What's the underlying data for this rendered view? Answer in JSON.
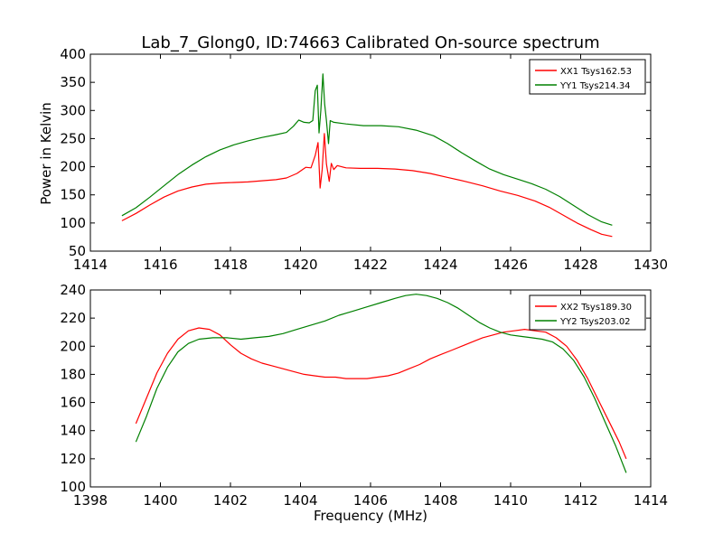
{
  "chart_data": [
    {
      "type": "line",
      "title": "Lab_7_Glong0, ID:74663 Calibrated On-source spectrum",
      "xlabel": "",
      "ylabel": "Power in Kelvin",
      "xlim": [
        1414,
        1430
      ],
      "ylim": [
        50,
        400
      ],
      "x_ticks": [
        1414,
        1416,
        1418,
        1420,
        1422,
        1424,
        1426,
        1428,
        1430
      ],
      "y_ticks": [
        50,
        100,
        150,
        200,
        250,
        300,
        350,
        400
      ],
      "grid": false,
      "legend_position": "top-right",
      "series": [
        {
          "name": "XX1 Tsys162.53",
          "color": "#ff0000",
          "points": [
            [
              1414.9,
              104
            ],
            [
              1415.3,
              117
            ],
            [
              1415.7,
              132
            ],
            [
              1416.1,
              146
            ],
            [
              1416.5,
              157
            ],
            [
              1416.9,
              164
            ],
            [
              1417.3,
              169
            ],
            [
              1417.7,
              171
            ],
            [
              1418.1,
              172
            ],
            [
              1418.5,
              173
            ],
            [
              1418.9,
              175
            ],
            [
              1419.3,
              177
            ],
            [
              1419.6,
              180
            ],
            [
              1419.9,
              188
            ],
            [
              1420.15,
              199
            ],
            [
              1420.3,
              198
            ],
            [
              1420.42,
              220
            ],
            [
              1420.5,
              243
            ],
            [
              1420.56,
              162
            ],
            [
              1420.62,
              195
            ],
            [
              1420.68,
              259
            ],
            [
              1420.74,
              205
            ],
            [
              1420.82,
              174
            ],
            [
              1420.88,
              206
            ],
            [
              1420.95,
              195
            ],
            [
              1421.05,
              202
            ],
            [
              1421.3,
              198
            ],
            [
              1421.7,
              197
            ],
            [
              1422.2,
              197
            ],
            [
              1422.7,
              196
            ],
            [
              1423.2,
              193
            ],
            [
              1423.7,
              188
            ],
            [
              1424.2,
              181
            ],
            [
              1424.7,
              174
            ],
            [
              1425.2,
              166
            ],
            [
              1425.7,
              157
            ],
            [
              1426.2,
              149
            ],
            [
              1426.7,
              139
            ],
            [
              1427.1,
              128
            ],
            [
              1427.5,
              114
            ],
            [
              1427.9,
              100
            ],
            [
              1428.3,
              88
            ],
            [
              1428.6,
              80
            ],
            [
              1428.9,
              76
            ]
          ]
        },
        {
          "name": "YY1 Tsys214.34",
          "color": "#008000",
          "points": [
            [
              1414.9,
              113
            ],
            [
              1415.3,
              127
            ],
            [
              1415.7,
              146
            ],
            [
              1416.1,
              166
            ],
            [
              1416.5,
              186
            ],
            [
              1416.9,
              203
            ],
            [
              1417.3,
              218
            ],
            [
              1417.7,
              230
            ],
            [
              1418.1,
              239
            ],
            [
              1418.5,
              246
            ],
            [
              1418.9,
              252
            ],
            [
              1419.3,
              257
            ],
            [
              1419.6,
              261
            ],
            [
              1419.8,
              272
            ],
            [
              1419.95,
              283
            ],
            [
              1420.1,
              279
            ],
            [
              1420.25,
              278
            ],
            [
              1420.35,
              282
            ],
            [
              1420.42,
              335
            ],
            [
              1420.48,
              345
            ],
            [
              1420.53,
              260
            ],
            [
              1420.58,
              300
            ],
            [
              1420.64,
              365
            ],
            [
              1420.69,
              312
            ],
            [
              1420.74,
              282
            ],
            [
              1420.8,
              241
            ],
            [
              1420.85,
              282
            ],
            [
              1420.95,
              279
            ],
            [
              1421.3,
              276
            ],
            [
              1421.8,
              273
            ],
            [
              1422.3,
              273
            ],
            [
              1422.8,
              271
            ],
            [
              1423.3,
              265
            ],
            [
              1423.8,
              255
            ],
            [
              1424.2,
              241
            ],
            [
              1424.6,
              225
            ],
            [
              1425.0,
              210
            ],
            [
              1425.4,
              196
            ],
            [
              1425.8,
              186
            ],
            [
              1426.2,
              178
            ],
            [
              1426.6,
              170
            ],
            [
              1427.0,
              160
            ],
            [
              1427.4,
              147
            ],
            [
              1427.8,
              131
            ],
            [
              1428.2,
              115
            ],
            [
              1428.6,
              102
            ],
            [
              1428.9,
              96
            ]
          ]
        }
      ]
    },
    {
      "type": "line",
      "title": "",
      "xlabel": "Frequency (MHz)",
      "ylabel": "",
      "xlim": [
        1398,
        1414
      ],
      "ylim": [
        100,
        240
      ],
      "x_ticks": [
        1398,
        1400,
        1402,
        1404,
        1406,
        1408,
        1410,
        1412,
        1414
      ],
      "y_ticks": [
        100,
        120,
        140,
        160,
        180,
        200,
        220,
        240
      ],
      "grid": false,
      "legend_position": "top-right",
      "series": [
        {
          "name": "XX2 Tsys189.30",
          "color": "#ff0000",
          "points": [
            [
              1399.3,
              145
            ],
            [
              1399.6,
              163
            ],
            [
              1399.9,
              181
            ],
            [
              1400.2,
              195
            ],
            [
              1400.5,
              205
            ],
            [
              1400.8,
              211
            ],
            [
              1401.1,
              213
            ],
            [
              1401.4,
              212
            ],
            [
              1401.7,
              208
            ],
            [
              1402.0,
              201
            ],
            [
              1402.3,
              195
            ],
            [
              1402.6,
              191
            ],
            [
              1402.9,
              188
            ],
            [
              1403.2,
              186
            ],
            [
              1403.5,
              184
            ],
            [
              1403.8,
              182
            ],
            [
              1404.1,
              180
            ],
            [
              1404.4,
              179
            ],
            [
              1404.7,
              178
            ],
            [
              1405.0,
              178
            ],
            [
              1405.3,
              177
            ],
            [
              1405.6,
              177
            ],
            [
              1405.9,
              177
            ],
            [
              1406.2,
              178
            ],
            [
              1406.5,
              179
            ],
            [
              1406.8,
              181
            ],
            [
              1407.1,
              184
            ],
            [
              1407.4,
              187
            ],
            [
              1407.7,
              191
            ],
            [
              1408.0,
              194
            ],
            [
              1408.3,
              197
            ],
            [
              1408.6,
              200
            ],
            [
              1408.9,
              203
            ],
            [
              1409.2,
              206
            ],
            [
              1409.5,
              208
            ],
            [
              1409.8,
              210
            ],
            [
              1410.1,
              211
            ],
            [
              1410.4,
              212
            ],
            [
              1410.7,
              211
            ],
            [
              1411.0,
              210
            ],
            [
              1411.3,
              206
            ],
            [
              1411.6,
              200
            ],
            [
              1411.9,
              190
            ],
            [
              1412.2,
              177
            ],
            [
              1412.5,
              162
            ],
            [
              1412.8,
              147
            ],
            [
              1413.1,
              132
            ],
            [
              1413.3,
              120
            ]
          ]
        },
        {
          "name": "YY2 Tsys203.02",
          "color": "#008000",
          "points": [
            [
              1399.3,
              132
            ],
            [
              1399.6,
              150
            ],
            [
              1399.9,
              170
            ],
            [
              1400.2,
              185
            ],
            [
              1400.5,
              196
            ],
            [
              1400.8,
              202
            ],
            [
              1401.1,
              205
            ],
            [
              1401.5,
              206
            ],
            [
              1401.9,
              206
            ],
            [
              1402.3,
              205
            ],
            [
              1402.7,
              206
            ],
            [
              1403.1,
              207
            ],
            [
              1403.5,
              209
            ],
            [
              1403.9,
              212
            ],
            [
              1404.3,
              215
            ],
            [
              1404.7,
              218
            ],
            [
              1405.1,
              222
            ],
            [
              1405.5,
              225
            ],
            [
              1405.9,
              228
            ],
            [
              1406.3,
              231
            ],
            [
              1406.7,
              234
            ],
            [
              1407.0,
              236
            ],
            [
              1407.3,
              237
            ],
            [
              1407.6,
              236
            ],
            [
              1407.9,
              234
            ],
            [
              1408.2,
              231
            ],
            [
              1408.5,
              227
            ],
            [
              1408.8,
              222
            ],
            [
              1409.1,
              217
            ],
            [
              1409.4,
              213
            ],
            [
              1409.7,
              210
            ],
            [
              1410.0,
              208
            ],
            [
              1410.3,
              207
            ],
            [
              1410.6,
              206
            ],
            [
              1410.9,
              205
            ],
            [
              1411.2,
              203
            ],
            [
              1411.5,
              198
            ],
            [
              1411.8,
              190
            ],
            [
              1412.1,
              178
            ],
            [
              1412.4,
              163
            ],
            [
              1412.7,
              146
            ],
            [
              1413.0,
              129
            ],
            [
              1413.3,
              110
            ]
          ]
        }
      ]
    }
  ]
}
